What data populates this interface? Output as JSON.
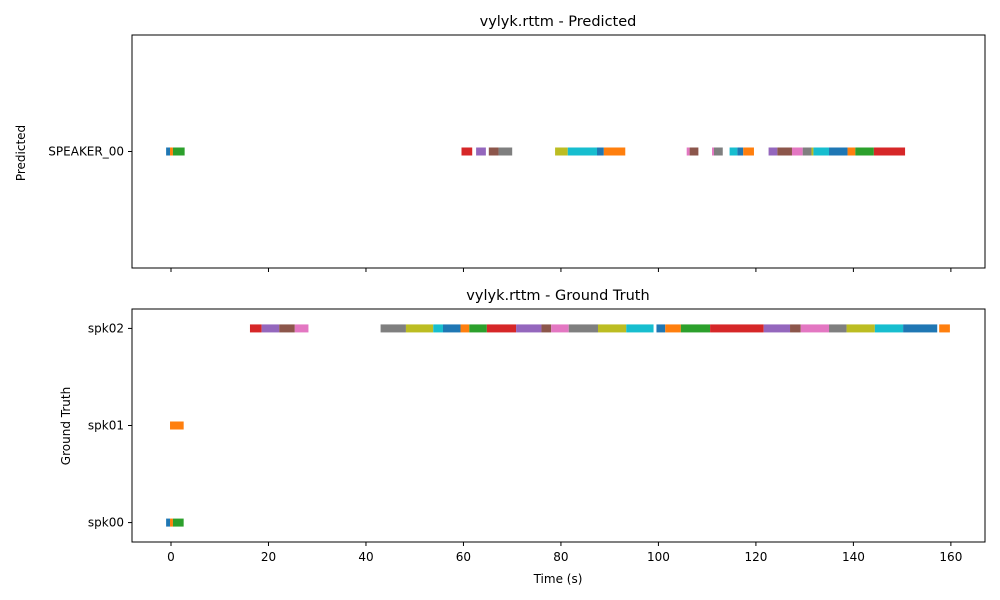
{
  "chart_data": [
    {
      "type": "timeline",
      "title": "vylyk.rttm - Predicted",
      "ylabel": "Predicted",
      "xlabel": "",
      "xlim": [
        -8,
        167
      ],
      "speakers": [
        "SPEAKER_00"
      ],
      "show_x_tick_labels": false,
      "segments": [
        {
          "speaker": "SPEAKER_00",
          "start": -1.0,
          "end": -0.2,
          "color": "#1f77b4"
        },
        {
          "speaker": "SPEAKER_00",
          "start": -0.2,
          "end": 0.4,
          "color": "#ff7f0e"
        },
        {
          "speaker": "SPEAKER_00",
          "start": 0.4,
          "end": 2.8,
          "color": "#2ca02c"
        },
        {
          "speaker": "SPEAKER_00",
          "start": 59.6,
          "end": 61.8,
          "color": "#d62728"
        },
        {
          "speaker": "SPEAKER_00",
          "start": 62.6,
          "end": 64.6,
          "color": "#9467bd"
        },
        {
          "speaker": "SPEAKER_00",
          "start": 65.2,
          "end": 67.2,
          "color": "#8c564b"
        },
        {
          "speaker": "SPEAKER_00",
          "start": 67.2,
          "end": 70.0,
          "color": "#7f7f7f"
        },
        {
          "speaker": "SPEAKER_00",
          "start": 78.8,
          "end": 81.4,
          "color": "#bcbd22"
        },
        {
          "speaker": "SPEAKER_00",
          "start": 81.4,
          "end": 87.4,
          "color": "#17becf"
        },
        {
          "speaker": "SPEAKER_00",
          "start": 87.4,
          "end": 88.8,
          "color": "#1f77b4"
        },
        {
          "speaker": "SPEAKER_00",
          "start": 88.8,
          "end": 93.2,
          "color": "#ff7f0e"
        },
        {
          "speaker": "SPEAKER_00",
          "start": 105.8,
          "end": 106.4,
          "color": "#e377c2"
        },
        {
          "speaker": "SPEAKER_00",
          "start": 106.4,
          "end": 108.2,
          "color": "#8c564b"
        },
        {
          "speaker": "SPEAKER_00",
          "start": 111.0,
          "end": 111.4,
          "color": "#e377c2"
        },
        {
          "speaker": "SPEAKER_00",
          "start": 111.4,
          "end": 113.2,
          "color": "#7f7f7f"
        },
        {
          "speaker": "SPEAKER_00",
          "start": 114.6,
          "end": 116.2,
          "color": "#17becf"
        },
        {
          "speaker": "SPEAKER_00",
          "start": 116.2,
          "end": 117.4,
          "color": "#1f77b4"
        },
        {
          "speaker": "SPEAKER_00",
          "start": 117.4,
          "end": 119.6,
          "color": "#ff7f0e"
        },
        {
          "speaker": "SPEAKER_00",
          "start": 122.6,
          "end": 124.4,
          "color": "#9467bd"
        },
        {
          "speaker": "SPEAKER_00",
          "start": 124.4,
          "end": 127.4,
          "color": "#8c564b"
        },
        {
          "speaker": "SPEAKER_00",
          "start": 127.4,
          "end": 129.6,
          "color": "#e377c2"
        },
        {
          "speaker": "SPEAKER_00",
          "start": 129.6,
          "end": 131.4,
          "color": "#7f7f7f"
        },
        {
          "speaker": "SPEAKER_00",
          "start": 131.4,
          "end": 131.8,
          "color": "#bcbd22"
        },
        {
          "speaker": "SPEAKER_00",
          "start": 131.8,
          "end": 135.0,
          "color": "#17becf"
        },
        {
          "speaker": "SPEAKER_00",
          "start": 135.0,
          "end": 138.8,
          "color": "#1f77b4"
        },
        {
          "speaker": "SPEAKER_00",
          "start": 138.8,
          "end": 140.4,
          "color": "#ff7f0e"
        },
        {
          "speaker": "SPEAKER_00",
          "start": 140.4,
          "end": 144.2,
          "color": "#2ca02c"
        },
        {
          "speaker": "SPEAKER_00",
          "start": 144.2,
          "end": 150.6,
          "color": "#d62728"
        }
      ]
    },
    {
      "type": "timeline",
      "title": "vylyk.rttm - Ground Truth",
      "ylabel": "Ground Truth",
      "xlabel": "Time (s)",
      "xlim": [
        -8,
        167
      ],
      "speakers": [
        "spk00",
        "spk01",
        "spk02"
      ],
      "show_x_tick_labels": true,
      "xticks": [
        0,
        20,
        40,
        60,
        80,
        100,
        120,
        140,
        160
      ],
      "segments": [
        {
          "speaker": "spk00",
          "start": -1.0,
          "end": -0.2,
          "color": "#1f77b4"
        },
        {
          "speaker": "spk00",
          "start": -0.2,
          "end": 0.4,
          "color": "#ff7f0e"
        },
        {
          "speaker": "spk00",
          "start": 0.4,
          "end": 2.6,
          "color": "#2ca02c"
        },
        {
          "speaker": "spk01",
          "start": -0.2,
          "end": 2.6,
          "color": "#ff7f0e"
        },
        {
          "speaker": "spk02",
          "start": 16.2,
          "end": 18.6,
          "color": "#d62728"
        },
        {
          "speaker": "spk02",
          "start": 18.6,
          "end": 22.2,
          "color": "#9467bd"
        },
        {
          "speaker": "spk02",
          "start": 22.2,
          "end": 25.4,
          "color": "#8c564b"
        },
        {
          "speaker": "spk02",
          "start": 25.4,
          "end": 28.2,
          "color": "#e377c2"
        },
        {
          "speaker": "spk02",
          "start": 43.0,
          "end": 48.2,
          "color": "#7f7f7f"
        },
        {
          "speaker": "spk02",
          "start": 48.2,
          "end": 53.8,
          "color": "#bcbd22"
        },
        {
          "speaker": "spk02",
          "start": 53.8,
          "end": 55.8,
          "color": "#17becf"
        },
        {
          "speaker": "spk02",
          "start": 55.8,
          "end": 59.4,
          "color": "#1f77b4"
        },
        {
          "speaker": "spk02",
          "start": 59.4,
          "end": 61.2,
          "color": "#ff7f0e"
        },
        {
          "speaker": "spk02",
          "start": 61.2,
          "end": 64.8,
          "color": "#2ca02c"
        },
        {
          "speaker": "spk02",
          "start": 64.8,
          "end": 70.8,
          "color": "#d62728"
        },
        {
          "speaker": "spk02",
          "start": 70.8,
          "end": 76.0,
          "color": "#9467bd"
        },
        {
          "speaker": "spk02",
          "start": 76.0,
          "end": 78.0,
          "color": "#8c564b"
        },
        {
          "speaker": "spk02",
          "start": 78.0,
          "end": 81.6,
          "color": "#e377c2"
        },
        {
          "speaker": "spk02",
          "start": 81.6,
          "end": 87.6,
          "color": "#7f7f7f"
        },
        {
          "speaker": "spk02",
          "start": 87.6,
          "end": 93.4,
          "color": "#bcbd22"
        },
        {
          "speaker": "spk02",
          "start": 93.4,
          "end": 99.0,
          "color": "#17becf"
        },
        {
          "speaker": "spk02",
          "start": 99.6,
          "end": 101.4,
          "color": "#1f77b4"
        },
        {
          "speaker": "spk02",
          "start": 101.4,
          "end": 104.6,
          "color": "#ff7f0e"
        },
        {
          "speaker": "spk02",
          "start": 104.6,
          "end": 110.6,
          "color": "#2ca02c"
        },
        {
          "speaker": "spk02",
          "start": 110.6,
          "end": 121.6,
          "color": "#d62728"
        },
        {
          "speaker": "spk02",
          "start": 121.6,
          "end": 127.0,
          "color": "#9467bd"
        },
        {
          "speaker": "spk02",
          "start": 127.0,
          "end": 129.2,
          "color": "#8c564b"
        },
        {
          "speaker": "spk02",
          "start": 129.2,
          "end": 135.0,
          "color": "#e377c2"
        },
        {
          "speaker": "spk02",
          "start": 135.0,
          "end": 138.6,
          "color": "#7f7f7f"
        },
        {
          "speaker": "spk02",
          "start": 138.6,
          "end": 144.4,
          "color": "#bcbd22"
        },
        {
          "speaker": "spk02",
          "start": 144.4,
          "end": 150.2,
          "color": "#17becf"
        },
        {
          "speaker": "spk02",
          "start": 150.2,
          "end": 157.2,
          "color": "#1f77b4"
        },
        {
          "speaker": "spk02",
          "start": 157.6,
          "end": 159.8,
          "color": "#ff7f0e"
        }
      ]
    }
  ]
}
